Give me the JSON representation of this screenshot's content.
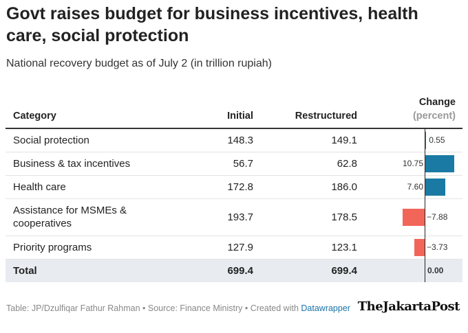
{
  "title": "Govt raises budget for business incentives, health care, social protection",
  "subtitle": "National recovery budget as of July 2 (in trillion rupiah)",
  "headers": {
    "category": "Category",
    "initial": "Initial",
    "restructured": "Restructured",
    "change": "Change",
    "change_unit": "(percent)"
  },
  "colors": {
    "positive": "#1a7aa3",
    "negative": "#f2665a",
    "total_bg": "#e8ecf1"
  },
  "chart_data": {
    "type": "table",
    "columns": [
      "Category",
      "Initial",
      "Restructured",
      "Change (percent)"
    ],
    "rows": [
      {
        "category": "Social protection",
        "initial": "148.3",
        "restructured": "149.1",
        "change": 0.55,
        "change_label": "0.55"
      },
      {
        "category": "Business & tax incentives",
        "initial": "56.7",
        "restructured": "62.8",
        "change": 10.75,
        "change_label": "10.75"
      },
      {
        "category": "Health care",
        "initial": "172.8",
        "restructured": "186.0",
        "change": 7.6,
        "change_label": "7.60"
      },
      {
        "category": "Assistance for MSMEs & cooperatives",
        "initial": "193.7",
        "restructured": "178.5",
        "change": -7.88,
        "change_label": "−7.88"
      },
      {
        "category": "Priority programs",
        "initial": "127.9",
        "restructured": "123.1",
        "change": -3.73,
        "change_label": "−3.73"
      }
    ],
    "total": {
      "category": "Total",
      "initial": "699.4",
      "restructured": "699.4",
      "change": 0.0,
      "change_label": "0.00"
    }
  },
  "footer": {
    "text": "Table: JP/Dzulfiqar Fathur Rahman • Source: Finance Ministry • Created with",
    "link": "Datawrapper"
  },
  "logo": "TheJakartaPost"
}
